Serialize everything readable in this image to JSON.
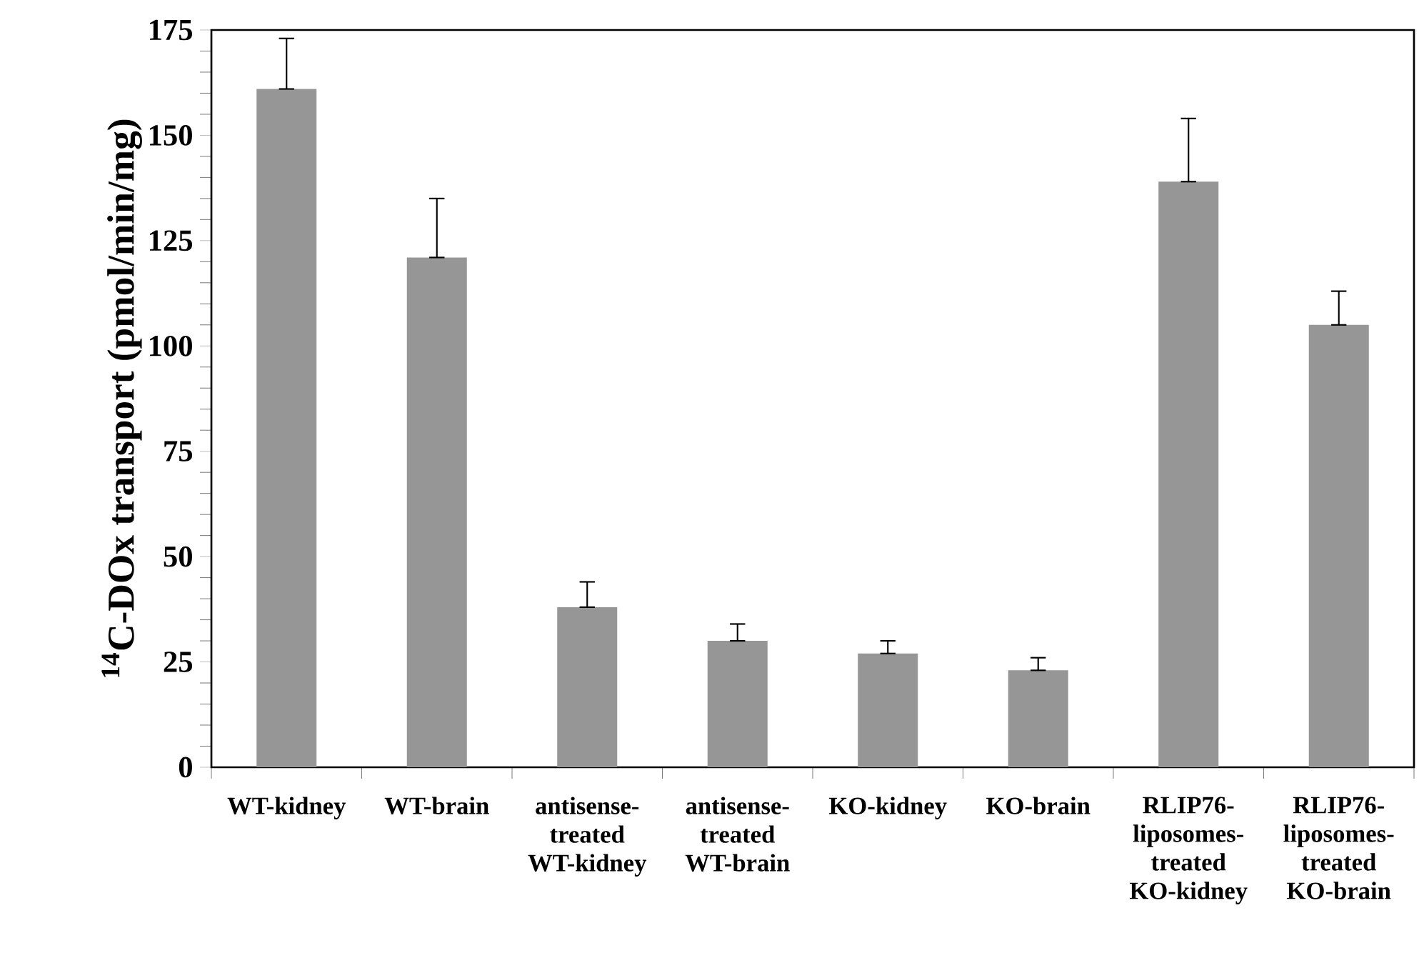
{
  "chart_data": {
    "type": "bar",
    "ylabel": "$^{14}$C-DOx transport (pmol/min/mg)",
    "categories": [
      "WT-kidney",
      "WT-brain",
      "antisense-treated WT-kidney",
      "antisense-treated WT-brain",
      "KO-kidney",
      "KO-brain",
      "RLIP76-liposomes-treated KO-kidney",
      "RLIP76-liposomes-treated KO-brain"
    ],
    "values": [
      161,
      121,
      38,
      30,
      27,
      23,
      139,
      105
    ],
    "errors": [
      [
        161,
        173
      ],
      [
        121,
        135
      ],
      [
        38,
        44
      ],
      [
        30,
        34
      ],
      [
        27,
        30
      ],
      [
        23,
        26
      ],
      [
        139,
        154
      ],
      [
        105,
        113
      ]
    ],
    "color": "#969696",
    "ylim": [
      0,
      175
    ],
    "yticks": [
      0,
      25,
      50,
      75,
      100,
      125,
      150,
      175
    ]
  }
}
